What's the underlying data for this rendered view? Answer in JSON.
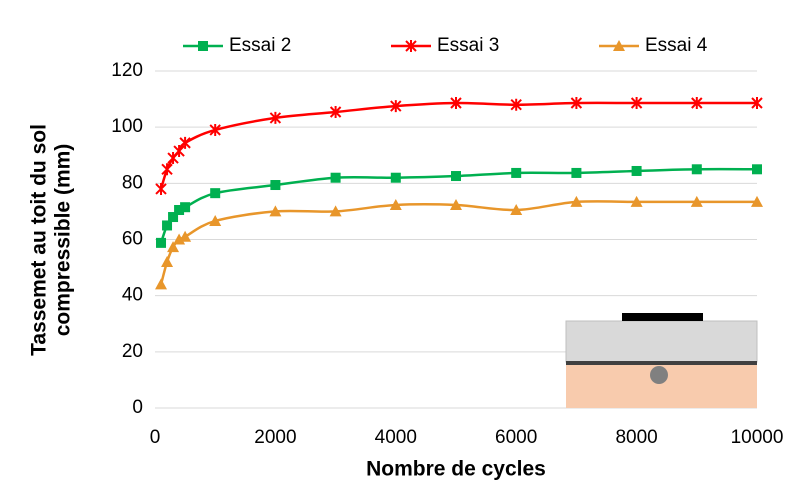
{
  "chart_data": {
    "type": "line",
    "xlabel": "Nombre de cycles",
    "ylabel": [
      "Tassemet au toit du sol",
      "compressible (mm)"
    ],
    "x": [
      100,
      200,
      300,
      400,
      500,
      1000,
      2000,
      3000,
      4000,
      5000,
      6000,
      7000,
      8000,
      9000,
      10000
    ],
    "series": [
      {
        "name": "Essai 2",
        "color": "#00b050",
        "marker": "square",
        "values": [
          58.8,
          65,
          68,
          70.5,
          71.5,
          76.5,
          79.4,
          82,
          82,
          82.6,
          83.7,
          83.7,
          84.4,
          85,
          85
        ]
      },
      {
        "name": "Essai 3",
        "color": "#ff0000",
        "marker": "star",
        "values": [
          78,
          85,
          89,
          91.5,
          94.4,
          99,
          103.3,
          105.4,
          107.5,
          108.6,
          108,
          108.6,
          108.6,
          108.6,
          108.6
        ]
      },
      {
        "name": "Essai 4",
        "color": "#e8962b",
        "marker": "triangle",
        "values": [
          44,
          52,
          57.3,
          60,
          61,
          66.6,
          70,
          70,
          72.3,
          72.3,
          70.5,
          73.4,
          73.4,
          73.4,
          73.4
        ]
      }
    ],
    "xlim": [
      0,
      10000
    ],
    "xticks": [
      0,
      2000,
      4000,
      6000,
      8000,
      10000
    ],
    "ylim": [
      0,
      120
    ],
    "yticks": [
      0,
      20,
      40,
      60,
      80,
      100,
      120
    ],
    "grid": true,
    "legend": "top"
  }
}
